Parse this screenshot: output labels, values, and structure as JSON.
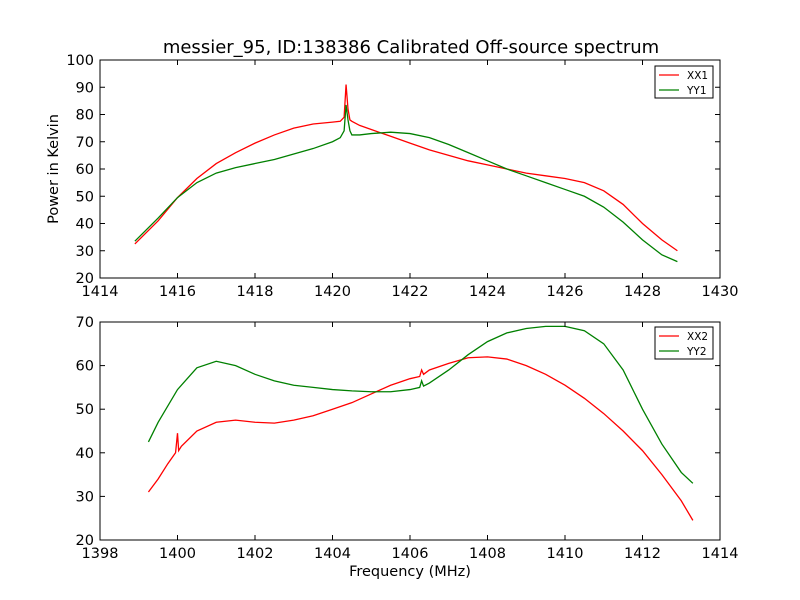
{
  "figure": {
    "title": "messier_95, ID:138386 Calibrated Off-source spectrum"
  },
  "chart_data": [
    {
      "type": "line",
      "title": "messier_95, ID:138386 Calibrated Off-source spectrum",
      "xlabel": "",
      "ylabel": "Power in Kelvin",
      "xlim": [
        1414,
        1430
      ],
      "ylim": [
        20,
        100
      ],
      "xticks": [
        "1414",
        "1416",
        "1418",
        "1420",
        "1422",
        "1424",
        "1426",
        "1428",
        "1430"
      ],
      "yticks": [
        "20",
        "30",
        "40",
        "50",
        "60",
        "70",
        "80",
        "90",
        "100"
      ],
      "grid": false,
      "legend": "top-right",
      "series": [
        {
          "name": "XX1",
          "color": "#ff0000",
          "x": [
            1414.9,
            1415.5,
            1416,
            1416.5,
            1417,
            1417.5,
            1418,
            1418.5,
            1419,
            1419.5,
            1420,
            1420.2,
            1420.3,
            1420.35,
            1420.4,
            1420.45,
            1420.5,
            1420.7,
            1421,
            1421.5,
            1422,
            1422.5,
            1423,
            1423.5,
            1424,
            1424.5,
            1425,
            1425.5,
            1426,
            1426.5,
            1427,
            1427.5,
            1428,
            1428.5,
            1428.9
          ],
          "y": [
            32.5,
            41,
            49.5,
            56.5,
            62,
            66,
            69.5,
            72.5,
            75,
            76.5,
            77.2,
            77.5,
            79,
            91,
            82,
            78,
            77.5,
            76,
            74.5,
            72,
            69.5,
            67,
            65,
            63,
            61.5,
            60,
            58.5,
            57.5,
            56.5,
            55,
            52,
            47,
            40,
            34,
            30
          ]
        },
        {
          "name": "YY1",
          "color": "#008000",
          "x": [
            1414.9,
            1415.5,
            1416,
            1416.5,
            1417,
            1417.5,
            1418,
            1418.5,
            1419,
            1419.5,
            1420,
            1420.2,
            1420.3,
            1420.35,
            1420.4,
            1420.45,
            1420.5,
            1420.7,
            1421,
            1421.5,
            1422,
            1422.5,
            1423,
            1423.5,
            1424,
            1424.5,
            1425,
            1425.5,
            1426,
            1426.5,
            1427,
            1427.5,
            1428,
            1428.5,
            1428.9
          ],
          "y": [
            33.5,
            42,
            49.5,
            55,
            58.5,
            60.5,
            62,
            63.5,
            65.5,
            67.5,
            70,
            71.5,
            74,
            83.5,
            78,
            74,
            72.5,
            72.5,
            73,
            73.5,
            73,
            71.5,
            69,
            66,
            63,
            60,
            57.5,
            55,
            52.5,
            50,
            46,
            40.5,
            34,
            28.5,
            26
          ]
        }
      ]
    },
    {
      "type": "line",
      "title": "",
      "xlabel": "Frequency (MHz)",
      "ylabel": "",
      "xlim": [
        1398,
        1414
      ],
      "ylim": [
        20,
        70
      ],
      "xticks": [
        "1398",
        "1400",
        "1402",
        "1404",
        "1406",
        "1408",
        "1410",
        "1412",
        "1414"
      ],
      "yticks": [
        "20",
        "30",
        "40",
        "50",
        "60",
        "70"
      ],
      "grid": false,
      "legend": "top-right",
      "series": [
        {
          "name": "XX2",
          "color": "#ff0000",
          "x": [
            1399.25,
            1399.5,
            1399.75,
            1399.95,
            1400,
            1400.03,
            1400.1,
            1400.5,
            1401,
            1401.5,
            1402,
            1402.5,
            1403,
            1403.5,
            1404,
            1404.5,
            1405,
            1405.5,
            1406,
            1406.25,
            1406.3,
            1406.35,
            1406.5,
            1407,
            1407.5,
            1408,
            1408.5,
            1409,
            1409.5,
            1410,
            1410.5,
            1411,
            1411.5,
            1412,
            1412.5,
            1413,
            1413.3
          ],
          "y": [
            31,
            34,
            37.5,
            40,
            44.5,
            40.5,
            41.5,
            45,
            47,
            47.5,
            47,
            46.8,
            47.5,
            48.5,
            50,
            51.5,
            53.5,
            55.5,
            57,
            57.5,
            59,
            58,
            59,
            60.5,
            61.8,
            62,
            61.5,
            60,
            58,
            55.5,
            52.5,
            49,
            45,
            40.5,
            35,
            29,
            24.5
          ]
        },
        {
          "name": "YY2",
          "color": "#008000",
          "x": [
            1399.25,
            1399.5,
            1400,
            1400.5,
            1401,
            1401.5,
            1402,
            1402.5,
            1403,
            1403.5,
            1404,
            1404.5,
            1405,
            1405.5,
            1406,
            1406.25,
            1406.3,
            1406.35,
            1406.5,
            1407,
            1407.5,
            1408,
            1408.5,
            1409,
            1409.5,
            1410,
            1410.5,
            1411,
            1411.5,
            1412,
            1412.5,
            1413,
            1413.3
          ],
          "y": [
            42.5,
            47,
            54.5,
            59.5,
            61,
            60,
            58,
            56.5,
            55.5,
            55,
            54.5,
            54.2,
            54,
            54,
            54.5,
            55,
            56.5,
            55.3,
            56,
            59,
            62.5,
            65.5,
            67.5,
            68.5,
            69,
            69,
            68,
            65,
            59,
            50,
            42,
            35.5,
            33
          ]
        }
      ]
    }
  ]
}
